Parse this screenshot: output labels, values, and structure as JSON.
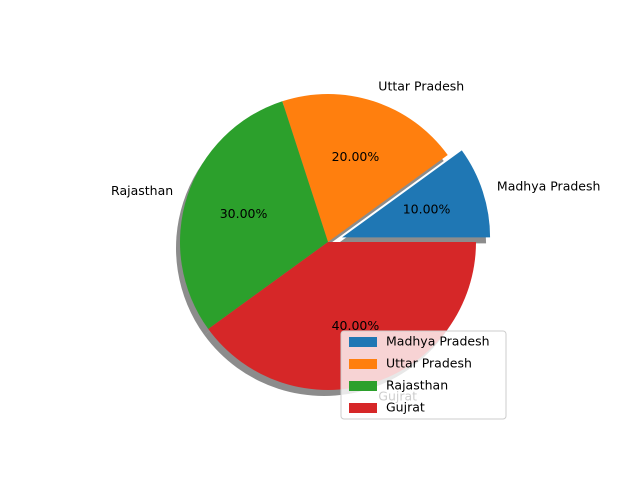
{
  "chart_data": {
    "type": "pie",
    "categories": [
      "Madhya Pradesh",
      "Uttar Pradesh",
      "Rajasthan",
      "Gujrat"
    ],
    "values": [
      10,
      20,
      30,
      40
    ],
    "percent_labels": [
      "10.00%",
      "20.00%",
      "30.00%",
      "40.00%"
    ],
    "colors": [
      "#1f77b4",
      "#ff7f0e",
      "#2ca02c",
      "#d62728"
    ],
    "exploded": [
      true,
      false,
      false,
      false
    ],
    "shadow": true,
    "start_angle_deg": 0,
    "direction": "counterclockwise",
    "legend": {
      "placement": "lower-right",
      "entries": [
        "Madhya Pradesh",
        "Uttar Pradesh",
        "Rajasthan",
        "Gujrat"
      ]
    }
  }
}
